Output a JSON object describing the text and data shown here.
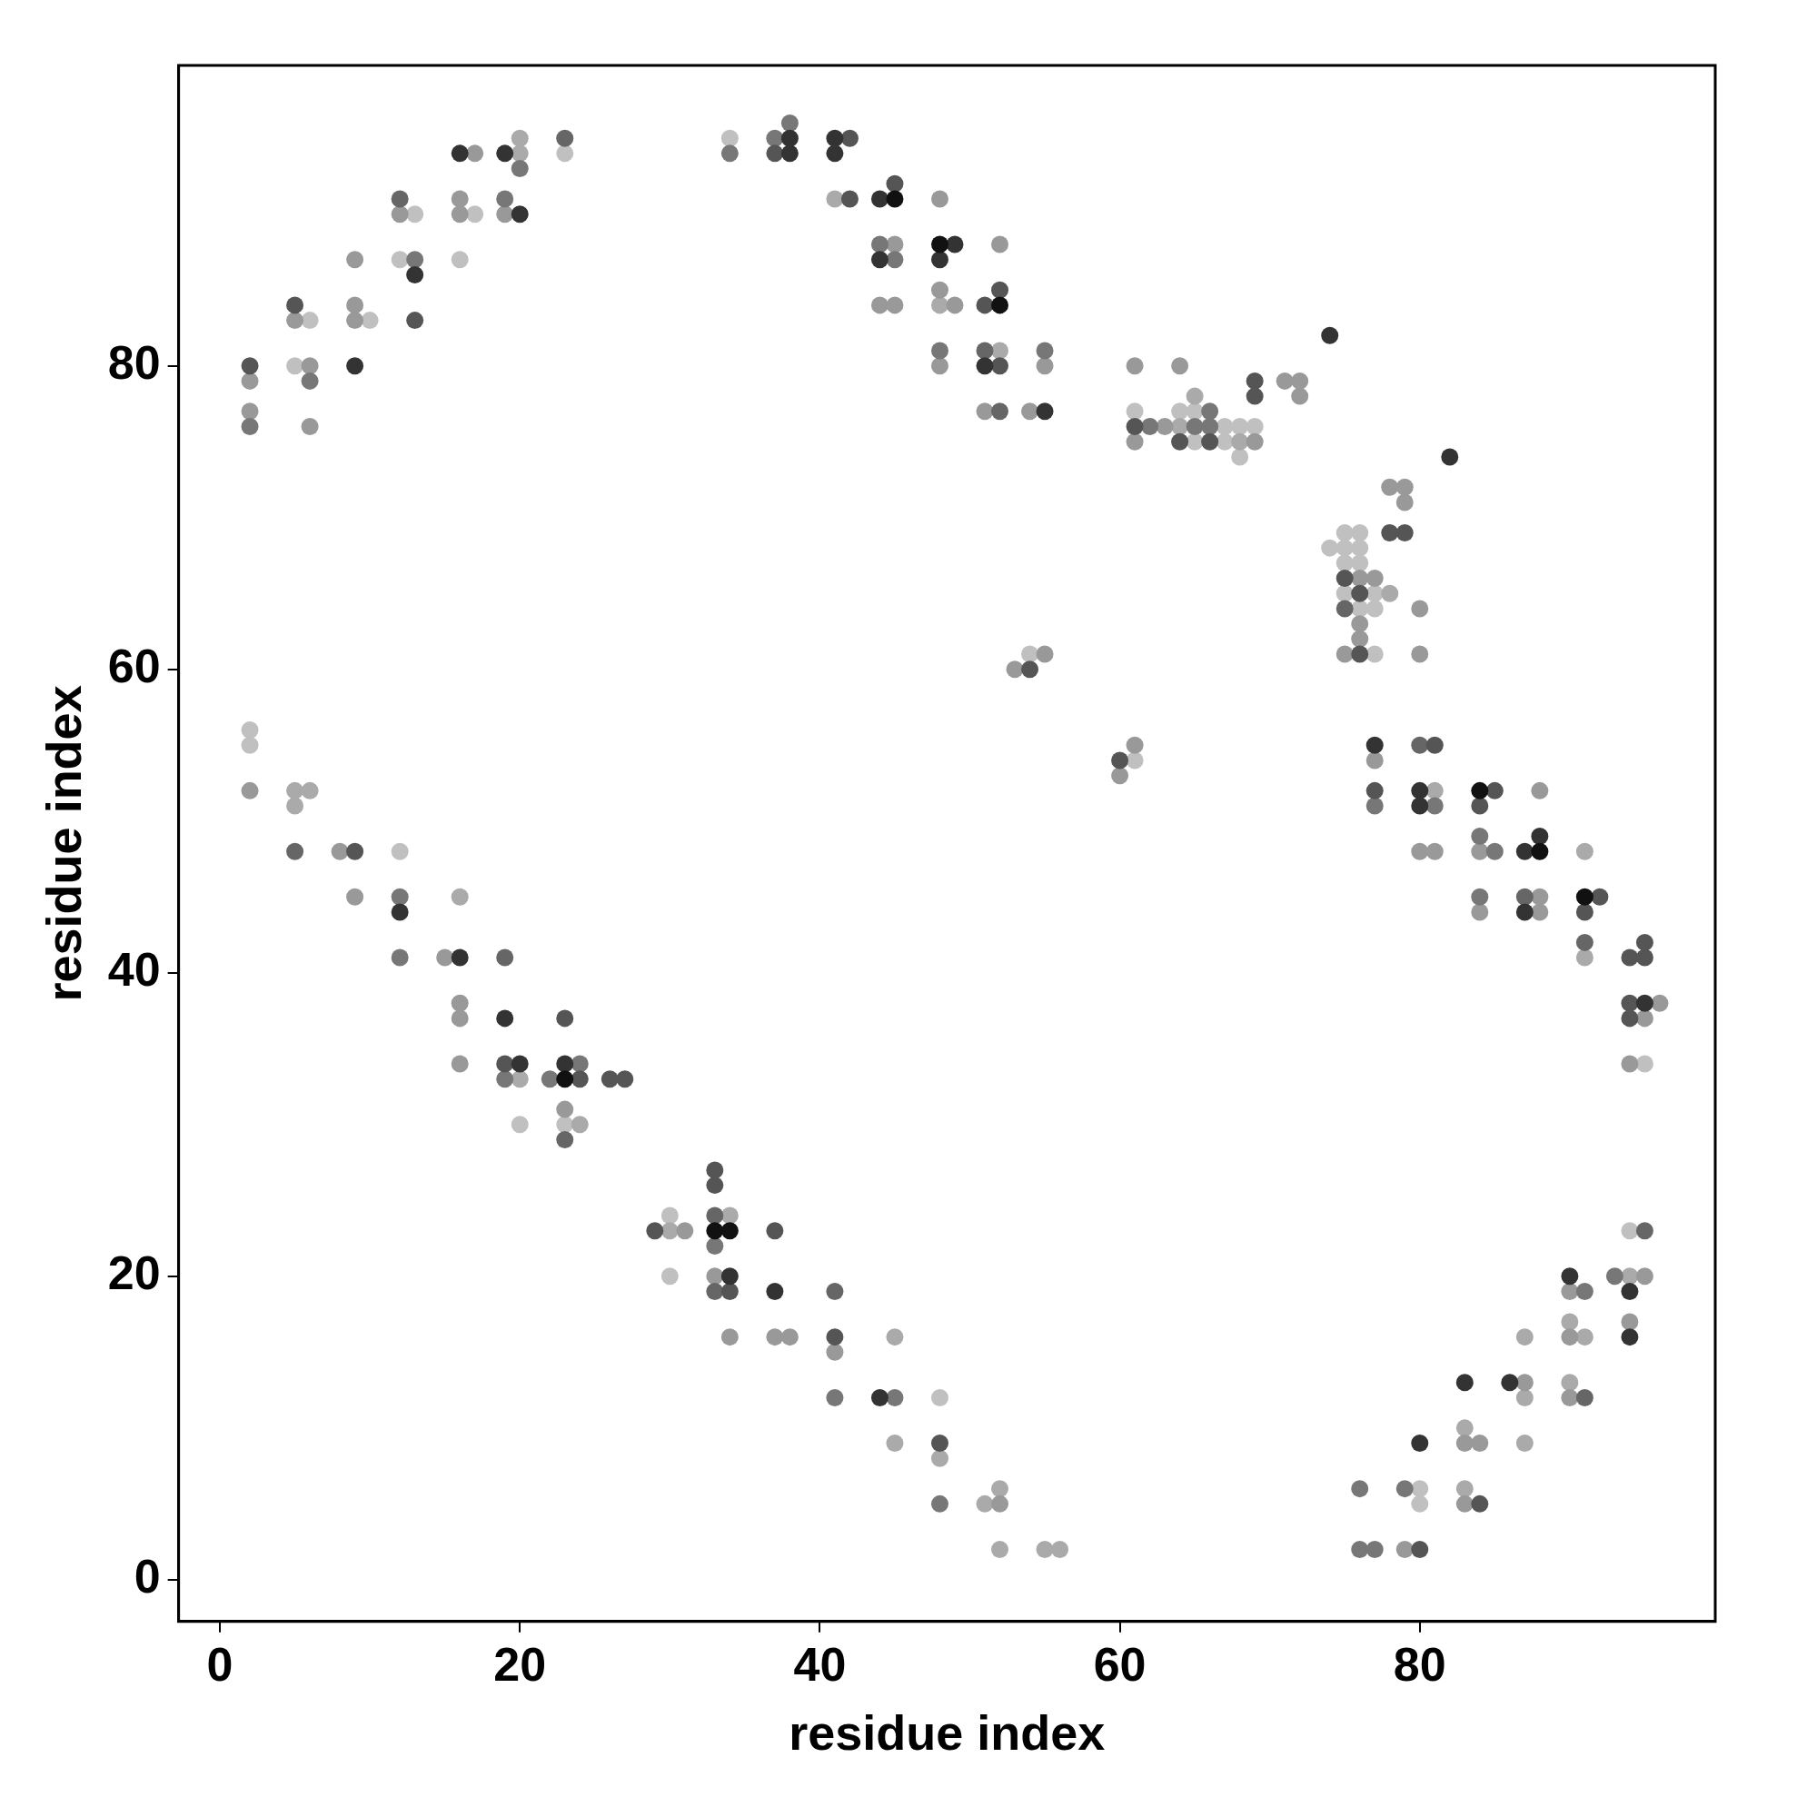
{
  "chart_data": {
    "type": "scatter",
    "xlabel": "residue index",
    "ylabel": "residue index",
    "xlim": [
      -2.75,
      99.7
    ],
    "ylim": [
      -2.75,
      99.8
    ],
    "xticks": [
      0,
      20,
      40,
      60,
      80
    ],
    "yticks": [
      0,
      20,
      40,
      60,
      80
    ],
    "grid": false,
    "legend": false,
    "marker": "circle",
    "series": [
      {
        "color": "#111111",
        "x": [
          45,
          48,
          52,
          84,
          88,
          91,
          23,
          33,
          34
        ],
        "values": [
          91,
          88,
          84,
          52,
          48,
          45,
          33,
          23,
          23
        ]
      },
      {
        "color": "#333333",
        "x": [
          38,
          41,
          16,
          19,
          38,
          41,
          44,
          20,
          49,
          44,
          48,
          13,
          9,
          51,
          74,
          55,
          82,
          77,
          80,
          80,
          88,
          87,
          12,
          87,
          16,
          95,
          19,
          20,
          23,
          34,
          90,
          37,
          94,
          94,
          83,
          86,
          44,
          80
        ],
        "values": [
          95,
          95,
          94,
          94,
          94,
          94,
          91,
          90,
          88,
          87,
          87,
          86,
          80,
          80,
          82,
          77,
          74,
          55,
          52,
          51,
          49,
          48,
          44,
          44,
          41,
          38,
          37,
          34,
          34,
          20,
          20,
          19,
          19,
          16,
          13,
          13,
          12,
          9
        ]
      },
      {
        "color": "#555555",
        "x": [
          42,
          37,
          45,
          42,
          52,
          5,
          51,
          13,
          2,
          52,
          69,
          69,
          61,
          64,
          66,
          78,
          79,
          75,
          76,
          76,
          54,
          81,
          60,
          77,
          85,
          84,
          9,
          92,
          91,
          95,
          94,
          95,
          94,
          23,
          94,
          19,
          24,
          26,
          27,
          33,
          33,
          29,
          37,
          34,
          41,
          48,
          84,
          80
        ],
        "values": [
          95,
          94,
          92,
          91,
          85,
          84,
          84,
          83,
          80,
          80,
          79,
          78,
          76,
          75,
          75,
          69,
          69,
          66,
          65,
          61,
          60,
          55,
          54,
          52,
          52,
          51,
          48,
          45,
          44,
          42,
          41,
          41,
          38,
          37,
          37,
          34,
          33,
          33,
          33,
          27,
          26,
          23,
          23,
          19,
          16,
          9,
          5,
          2
        ]
      },
      {
        "color": "#666666",
        "x": [
          23,
          12,
          51,
          52,
          75,
          80,
          5,
          87,
          91,
          19,
          23,
          33,
          95,
          33,
          41,
          91
        ],
        "values": [
          95,
          91,
          81,
          77,
          64,
          55,
          48,
          45,
          42,
          41,
          29,
          24,
          23,
          19,
          19,
          12
        ]
      },
      {
        "color": "#777777",
        "x": [
          37,
          38,
          34,
          20,
          19,
          44,
          13,
          45,
          48,
          55,
          6,
          66,
          2,
          62,
          65,
          66,
          77,
          81,
          84,
          85,
          12,
          84,
          12,
          24,
          19,
          22,
          33,
          93,
          91,
          41,
          45,
          76,
          79,
          48,
          76,
          77
        ],
        "values": [
          95,
          96,
          94,
          93,
          91,
          88,
          87,
          87,
          81,
          81,
          79,
          77,
          76,
          76,
          76,
          76,
          51,
          51,
          49,
          48,
          45,
          45,
          41,
          34,
          33,
          33,
          22,
          20,
          19,
          12,
          12,
          6,
          6,
          5,
          2,
          2
        ]
      },
      {
        "color": "#999999",
        "x": [
          17,
          16,
          48,
          12,
          16,
          19,
          45,
          52,
          9,
          48,
          9,
          44,
          45,
          49,
          5,
          9,
          6,
          48,
          55,
          61,
          64,
          2,
          71,
          72,
          72,
          2,
          51,
          54,
          6,
          63,
          61,
          69,
          78,
          79,
          79,
          76,
          77,
          80,
          76,
          76,
          55,
          75,
          80,
          53,
          61,
          77,
          60,
          2,
          88,
          8,
          80,
          81,
          84,
          9,
          88,
          84,
          88,
          15,
          16,
          96,
          16,
          95,
          16,
          94,
          23,
          31,
          33,
          95,
          90,
          94,
          34,
          37,
          38,
          90,
          41,
          87,
          90,
          83,
          84,
          52,
          83,
          79
        ],
        "values": [
          94,
          91,
          91,
          90,
          90,
          90,
          88,
          88,
          87,
          85,
          84,
          84,
          84,
          84,
          83,
          83,
          80,
          80,
          80,
          80,
          80,
          79,
          79,
          79,
          78,
          77,
          77,
          77,
          76,
          76,
          75,
          75,
          72,
          72,
          71,
          66,
          66,
          64,
          63,
          62,
          61,
          61,
          61,
          60,
          55,
          54,
          53,
          52,
          52,
          48,
          48,
          48,
          48,
          45,
          45,
          44,
          44,
          41,
          38,
          38,
          37,
          37,
          34,
          34,
          31,
          23,
          20,
          20,
          19,
          17,
          16,
          16,
          16,
          16,
          15,
          13,
          12,
          9,
          9,
          5,
          5,
          2
        ]
      },
      {
        "color": "#aaaaaa",
        "x": [
          20,
          20,
          41,
          48,
          52,
          65,
          64,
          68,
          78,
          5,
          6,
          81,
          5,
          91,
          16,
          91,
          20,
          24,
          30,
          34,
          94,
          90,
          45,
          87,
          91,
          90,
          87,
          83,
          45,
          87,
          48,
          52,
          83,
          51,
          52,
          55,
          56
        ],
        "values": [
          95,
          94,
          91,
          84,
          81,
          78,
          76,
          75,
          65,
          52,
          52,
          52,
          51,
          48,
          45,
          41,
          33,
          30,
          23,
          24,
          20,
          17,
          16,
          16,
          16,
          13,
          12,
          10,
          9,
          9,
          8,
          6,
          6,
          5,
          2,
          2,
          2
        ]
      },
      {
        "color": "#c0c0c0",
        "x": [
          34,
          23,
          13,
          17,
          12,
          16,
          6,
          10,
          5,
          61,
          64,
          65,
          67,
          68,
          69,
          65,
          67,
          68,
          75,
          76,
          74,
          75,
          76,
          75,
          76,
          75,
          77,
          76,
          77,
          77,
          54,
          2,
          2,
          61,
          12,
          95,
          20,
          23,
          30,
          94,
          30,
          48,
          80,
          80
        ],
        "values": [
          95,
          94,
          90,
          90,
          87,
          87,
          83,
          83,
          80,
          77,
          77,
          77,
          76,
          76,
          76,
          75,
          75,
          74,
          69,
          69,
          68,
          68,
          68,
          67,
          67,
          65,
          65,
          64,
          64,
          61,
          61,
          56,
          55,
          54,
          48,
          34,
          30,
          30,
          24,
          23,
          20,
          12,
          6,
          5
        ]
      }
    ]
  }
}
